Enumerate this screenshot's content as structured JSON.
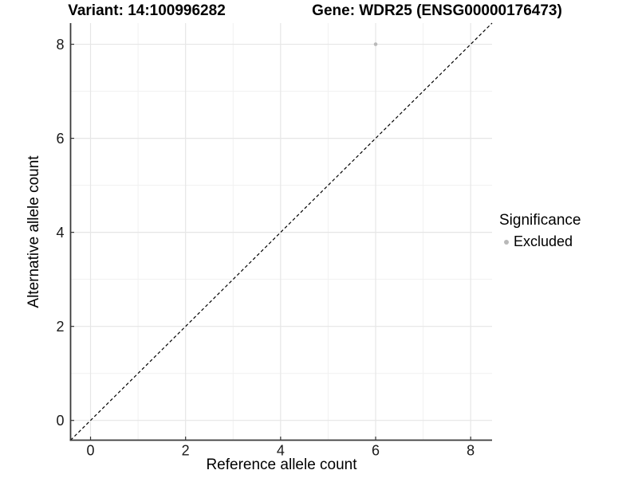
{
  "titles": {
    "variant": "Variant: 14:100996282",
    "gene": "Gene: WDR25 (ENSG00000176473)"
  },
  "axes": {
    "x_label": "Reference allele count",
    "y_label": "Alternative allele count"
  },
  "legend": {
    "title": "Significance",
    "items": [
      {
        "label": "Excluded",
        "color": "#b9b9b9"
      }
    ]
  },
  "colors": {
    "background": "#ffffff",
    "grid_major": "#e6e6e6",
    "grid_minor": "#f1f1f1",
    "axis_line": "#3a3a3a",
    "tick_mark": "#333333",
    "tick_label": "#1a1a1a",
    "identity_line": "#000000",
    "excluded_point": "#b9b9b9"
  },
  "chart_data": {
    "type": "scatter",
    "title_left": "Variant: 14:100996282",
    "title_right": "Gene: WDR25 (ENSG00000176473)",
    "xlabel": "Reference allele count",
    "ylabel": "Alternative allele count",
    "xlim": [
      -0.42,
      8.45
    ],
    "ylim": [
      -0.42,
      8.45
    ],
    "x_ticks": [
      0,
      2,
      4,
      6,
      8
    ],
    "y_ticks": [
      0,
      2,
      4,
      6,
      8
    ],
    "x_minor_ticks": [
      1,
      3,
      5,
      7
    ],
    "y_minor_ticks": [
      1,
      3,
      5,
      7
    ],
    "grid": true,
    "legend_title": "Significance",
    "legend_position": "right",
    "series": [
      {
        "name": "Excluded",
        "color": "#b9b9b9",
        "points": [
          {
            "x": 6,
            "y": 8
          }
        ]
      }
    ],
    "reference_line": {
      "kind": "identity",
      "slope": 1,
      "intercept": 0,
      "style": "dashed",
      "color": "#000000"
    }
  }
}
